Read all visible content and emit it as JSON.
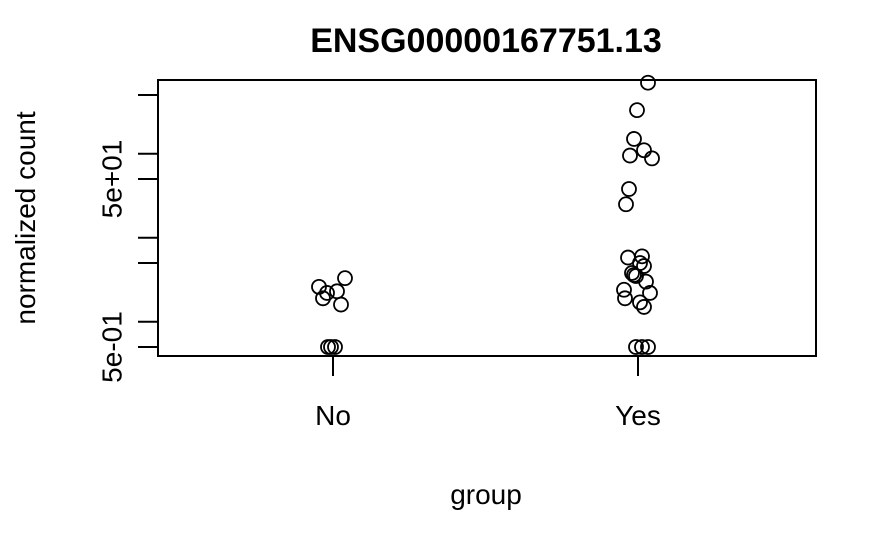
{
  "chart_data": {
    "type": "scatter",
    "title": "ENSG00000167751.13",
    "xlabel": "group",
    "ylabel": "normalized count",
    "categories": [
      "No",
      "Yes"
    ],
    "y_scale": "log10",
    "y_ticks": [
      0.5,
      1,
      5,
      10,
      50,
      100,
      500
    ],
    "y_tick_labels": [
      "5e-01",
      "",
      "",
      "",
      "5e+01",
      "",
      ""
    ],
    "ylim": [
      0.5,
      800
    ],
    "grid": false,
    "series": [
      {
        "values": [
          {
            "x": "No",
            "y": 2.6
          },
          {
            "x": "No",
            "y": 3.3
          },
          {
            "x": "No",
            "y": 2.2
          },
          {
            "x": "No",
            "y": 2.3
          },
          {
            "x": "No",
            "y": 1.9
          },
          {
            "x": "No",
            "y": 1.6
          },
          {
            "x": "No",
            "y": 0.5
          },
          {
            "x": "No",
            "y": 0.5
          },
          {
            "x": "No",
            "y": 0.5
          },
          {
            "x": "Yes",
            "y": 700
          },
          {
            "x": "Yes",
            "y": 330
          },
          {
            "x": "Yes",
            "y": 150
          },
          {
            "x": "Yes",
            "y": 110
          },
          {
            "x": "Yes",
            "y": 95
          },
          {
            "x": "Yes",
            "y": 88
          },
          {
            "x": "Yes",
            "y": 38
          },
          {
            "x": "Yes",
            "y": 25
          },
          {
            "x": "Yes",
            "y": 6.0
          },
          {
            "x": "Yes",
            "y": 5.8
          },
          {
            "x": "Yes",
            "y": 5.0
          },
          {
            "x": "Yes",
            "y": 4.6
          },
          {
            "x": "Yes",
            "y": 3.8
          },
          {
            "x": "Yes",
            "y": 3.6
          },
          {
            "x": "Yes",
            "y": 3.5
          },
          {
            "x": "Yes",
            "y": 3.0
          },
          {
            "x": "Yes",
            "y": 2.4
          },
          {
            "x": "Yes",
            "y": 2.2
          },
          {
            "x": "Yes",
            "y": 1.9
          },
          {
            "x": "Yes",
            "y": 1.7
          },
          {
            "x": "Yes",
            "y": 1.5
          },
          {
            "x": "Yes",
            "y": 0.5
          },
          {
            "x": "Yes",
            "y": 0.5
          },
          {
            "x": "Yes",
            "y": 0.5
          }
        ]
      }
    ]
  }
}
